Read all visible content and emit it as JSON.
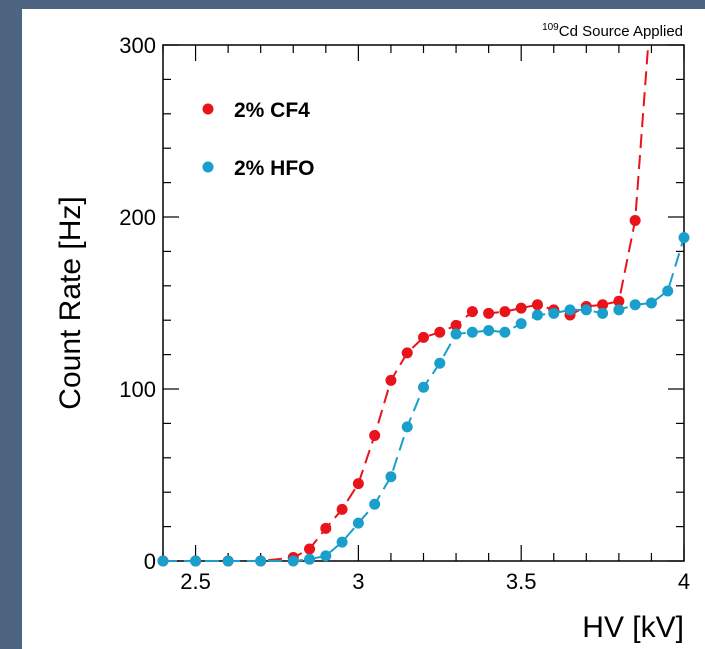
{
  "chart_data": {
    "type": "line",
    "annotation": {
      "superscript": "109",
      "text": "Cd Source Applied"
    },
    "xlabel": "HV [kV]",
    "ylabel": "Count Rate [Hz]",
    "xlim": [
      2.4,
      4.0
    ],
    "ylim": [
      0,
      300
    ],
    "x_ticks": [
      2.5,
      3,
      3.5,
      4
    ],
    "x_tick_labels": [
      "2.5",
      "3",
      "3.5",
      "4"
    ],
    "y_ticks": [
      0,
      100,
      200,
      300
    ],
    "y_tick_labels": [
      "0",
      "100",
      "200",
      "300"
    ],
    "grid": false,
    "legend_placement": "top-left",
    "series": [
      {
        "name": "2% CF4",
        "color": "#e8131b",
        "line_style": "dashed",
        "x": [
          2.4,
          2.5,
          2.6,
          2.7,
          2.8,
          2.85,
          2.9,
          2.95,
          3.0,
          3.05,
          3.1,
          3.15,
          3.2,
          3.25,
          3.3,
          3.35,
          3.4,
          3.45,
          3.5,
          3.55,
          3.6,
          3.65,
          3.7,
          3.75,
          3.8,
          3.85
        ],
        "y": [
          0,
          0,
          0,
          0,
          2,
          7,
          19,
          30,
          45,
          73,
          105,
          121,
          130,
          133,
          137,
          145,
          144,
          145,
          147,
          149,
          146,
          143,
          148,
          149,
          151,
          198
        ],
        "curve_continues_to": {
          "x": 3.89,
          "y": 300
        }
      },
      {
        "name": "2% HFO",
        "color": "#1a9fcc",
        "line_style": "dashed",
        "x": [
          2.4,
          2.5,
          2.6,
          2.7,
          2.8,
          2.85,
          2.9,
          2.95,
          3.0,
          3.05,
          3.1,
          3.15,
          3.2,
          3.25,
          3.3,
          3.35,
          3.4,
          3.45,
          3.5,
          3.55,
          3.6,
          3.65,
          3.7,
          3.75,
          3.8,
          3.85,
          3.9,
          3.95,
          4.0
        ],
        "y": [
          0,
          0,
          0,
          0,
          0,
          1,
          3,
          11,
          22,
          33,
          49,
          78,
          101,
          115,
          132,
          133,
          134,
          133,
          138,
          143,
          144,
          146,
          146,
          144,
          146,
          149,
          150,
          157,
          188
        ]
      }
    ]
  }
}
